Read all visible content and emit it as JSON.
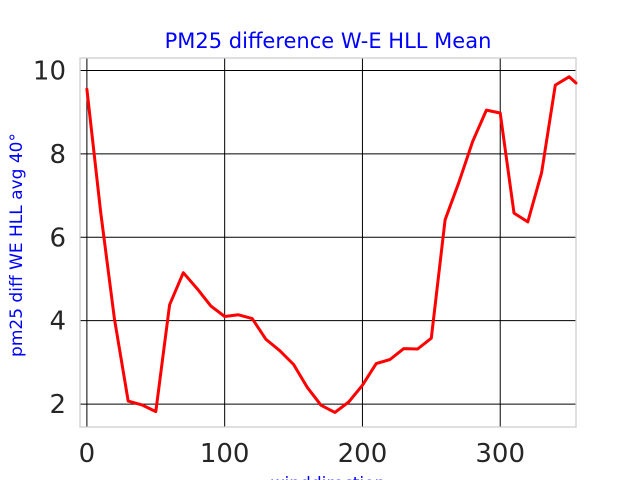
{
  "chart_data": {
    "type": "line",
    "title": "PM25 difference W-E HLL Mean",
    "xlabel": "winddirection",
    "ylabel": "pm25 diff WE HLL avg 40°",
    "xlim": [
      -5,
      355
    ],
    "ylim": [
      1.45,
      10.3
    ],
    "x_ticks": [
      0,
      100,
      200,
      300
    ],
    "y_ticks": [
      2,
      4,
      6,
      8,
      10
    ],
    "grid": true,
    "legend": "none",
    "series": [
      {
        "color": "#ff0000",
        "x": [
          0,
          10,
          20,
          30,
          40,
          50,
          60,
          70,
          80,
          90,
          100,
          110,
          120,
          130,
          140,
          150,
          160,
          170,
          180,
          190,
          200,
          210,
          220,
          230,
          240,
          250,
          260,
          270,
          280,
          290,
          300,
          310,
          320,
          330,
          340,
          350,
          355
        ],
        "y": [
          9.55,
          6.6,
          4.05,
          2.07,
          1.98,
          1.82,
          4.38,
          5.15,
          4.77,
          4.35,
          4.1,
          4.14,
          4.05,
          3.55,
          3.28,
          2.95,
          2.4,
          1.97,
          1.8,
          2.05,
          2.45,
          2.97,
          3.07,
          3.33,
          3.32,
          3.58,
          6.42,
          7.32,
          8.3,
          9.05,
          8.98,
          6.58,
          6.37,
          7.55,
          9.65,
          9.85,
          9.7
        ]
      }
    ]
  }
}
